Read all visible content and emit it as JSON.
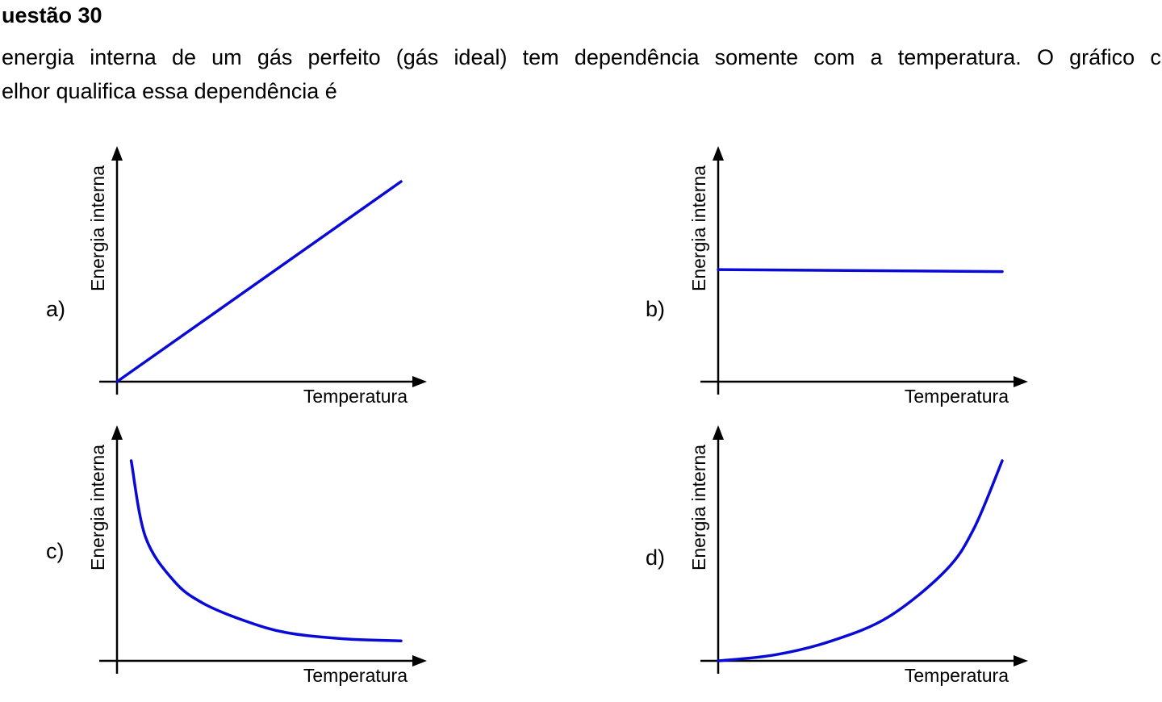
{
  "question": {
    "title": "uestão 30",
    "stem_line_1": "energia interna de um gás perfeito (gás ideal) tem dependência somente com a temperatura. O gráfico c",
    "stem_line_2": "elhor qualifica essa dependência é"
  },
  "options": [
    {
      "label": "a)",
      "ylabel": "Energia interna",
      "xlabel": "Temperatura",
      "chart_data": {
        "type": "line",
        "shape": "linear-increasing",
        "x": [
          0,
          1
        ],
        "y": [
          0,
          1
        ],
        "color": "#0a0ad6"
      }
    },
    {
      "label": "b)",
      "ylabel": "Energia interna",
      "xlabel": "Temperatura",
      "chart_data": {
        "type": "line",
        "shape": "constant",
        "x": [
          0,
          1
        ],
        "y": [
          0.56,
          0.55
        ],
        "color": "#0a0ad6"
      }
    },
    {
      "label": "c)",
      "ylabel": "Energia interna",
      "xlabel": "Temperatura",
      "chart_data": {
        "type": "line",
        "shape": "decreasing-hyperbolic",
        "x": [
          0.05,
          0.1,
          0.2,
          0.3,
          0.45,
          0.6,
          0.8,
          1
        ],
        "y": [
          1,
          0.62,
          0.4,
          0.29,
          0.2,
          0.14,
          0.11,
          0.1
        ],
        "color": "#0a0ad6"
      }
    },
    {
      "label": "d)",
      "ylabel": "Energia interna",
      "xlabel": "Temperatura",
      "chart_data": {
        "type": "line",
        "shape": "increasing-exponential",
        "x": [
          0,
          0.2,
          0.4,
          0.6,
          0.8,
          0.9,
          1
        ],
        "y": [
          0,
          0.03,
          0.1,
          0.22,
          0.45,
          0.66,
          1
        ],
        "color": "#0a0ad6"
      }
    }
  ]
}
